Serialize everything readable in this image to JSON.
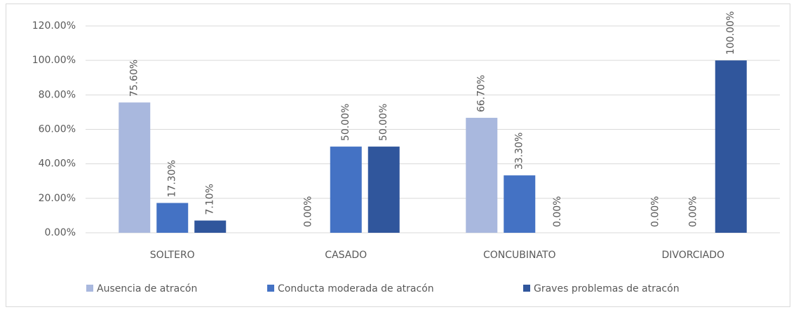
{
  "chart_data": {
    "type": "bar",
    "categories": [
      "SOLTERO",
      "CASADO",
      "CONCUBINATO",
      "DIVORCIADO"
    ],
    "series": [
      {
        "name": "Ausencia de atracón",
        "color": "#a9b8de",
        "values": [
          75.6,
          0,
          66.7,
          0
        ],
        "value_labels": [
          "75.60%",
          "0.00%",
          "66.70%",
          "0.00%"
        ]
      },
      {
        "name": "Conducta moderada de atracón",
        "color": "#4472c4",
        "values": [
          17.3,
          50,
          33.3,
          0
        ],
        "value_labels": [
          "17.30%",
          "50.00%",
          "33.30%",
          "0.00%"
        ]
      },
      {
        "name": "Graves problemas  de atracón",
        "color": "#30569c",
        "values": [
          7.1,
          50,
          0,
          100
        ],
        "value_labels": [
          "7.10%",
          "50.00%",
          "0.00%",
          "100.00%"
        ]
      }
    ],
    "ylim": [
      0,
      120
    ],
    "yticks": [
      {
        "value": 0,
        "label": "0.00%"
      },
      {
        "value": 20,
        "label": "20.00%"
      },
      {
        "value": 40,
        "label": "40.00%"
      },
      {
        "value": 60,
        "label": "60.00%"
      },
      {
        "value": 80,
        "label": "80.00%"
      },
      {
        "value": 100,
        "label": "100.00%"
      },
      {
        "value": 120,
        "label": "120.00%"
      }
    ],
    "grid": true,
    "legend": "bottom"
  }
}
